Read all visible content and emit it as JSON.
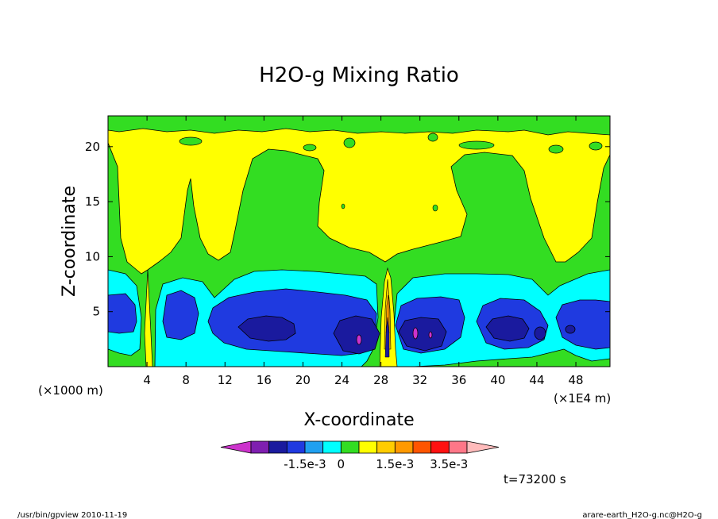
{
  "chart_data": {
    "type": "heatmap",
    "title": "H2O-g Mixing Ratio",
    "xlabel": "X-coordinate",
    "ylabel": "Z-coordinate",
    "x_unit_left": "(×1000 m)",
    "x_unit_right": "(×1E4 m)",
    "xlim": [
      0,
      51.5
    ],
    "ylim": [
      0,
      22.8
    ],
    "x_ticks": [
      4,
      8,
      12,
      16,
      20,
      24,
      28,
      32,
      36,
      40,
      44,
      48
    ],
    "y_ticks": [
      5,
      10,
      15,
      20
    ],
    "grid": false,
    "time_label": "t=73200 s",
    "footer_left": "/usr/bin/gpview  2010-11-19",
    "footer_right": "arare-earth_H2O-g.nc@H2O-g",
    "colorbar": {
      "labels": [
        {
          "text": "-1.5e-3",
          "after_box": 3
        },
        {
          "text": "0",
          "after_box": 5
        },
        {
          "text": "1.5e-3",
          "after_box": 8
        },
        {
          "text": "3.5e-3",
          "after_box": 11
        }
      ],
      "colors": [
        "#cc33cc",
        "#7f1fb0",
        "#1a1a9e",
        "#1f3ae0",
        "#1fa0f0",
        "#00ffff",
        "#33dd22",
        "#ffff00",
        "#ffcc00",
        "#ff9900",
        "#ff5500",
        "#ff1111",
        "#ff7788",
        "#ffbbbb"
      ]
    },
    "fields": [
      {
        "level": "background",
        "color": "#ffff00"
      },
      {
        "level": "0",
        "color": "#33dd22"
      },
      {
        "level": "-5e-4",
        "color": "#00ffff"
      },
      {
        "level": "-1e-3",
        "color": "#1f3ae0"
      },
      {
        "level": "-1.5e-3",
        "color": "#1a1a9e"
      },
      {
        "level": "-2e-3",
        "color": "#7f1fb0"
      },
      {
        "level": "5e-4",
        "color": "#ffcc00"
      },
      {
        "level": "1e-3",
        "color": "#ff9900"
      }
    ]
  }
}
